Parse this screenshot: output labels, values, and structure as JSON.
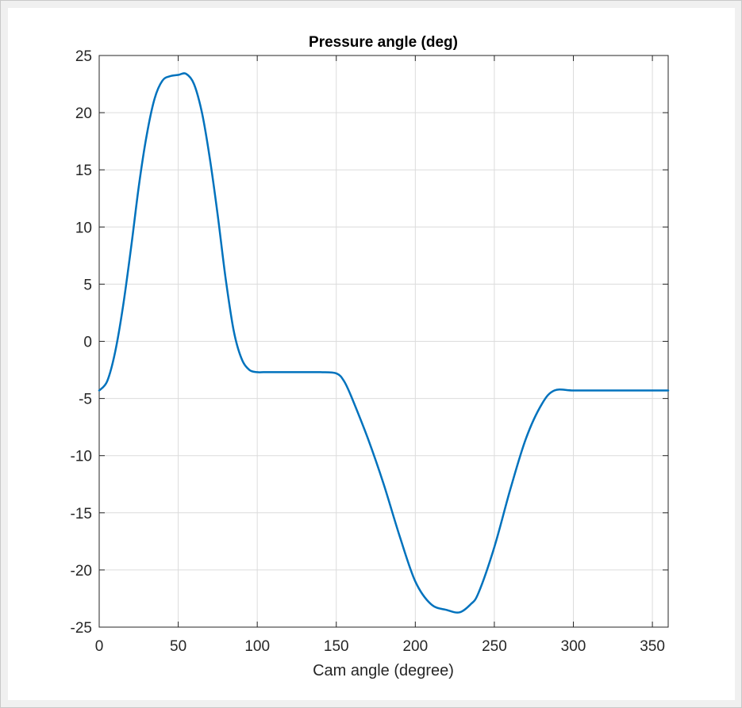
{
  "colors": {
    "background": "#f0f0f0",
    "axes_background": "#ffffff",
    "grid": "#dcdcdc",
    "axis": "#262626",
    "series": "#0072bd"
  },
  "chart_data": {
    "type": "line",
    "title": "Pressure angle (deg)",
    "xlabel": "Cam angle (degree)",
    "ylabel": "",
    "xlim": [
      0,
      360
    ],
    "ylim": [
      -25,
      25
    ],
    "xticks": [
      0,
      50,
      100,
      150,
      200,
      250,
      300,
      350
    ],
    "yticks": [
      25,
      20,
      15,
      10,
      5,
      0,
      -5,
      -10,
      -15,
      -20,
      -25
    ],
    "grid": true,
    "legend": "none",
    "series": [
      {
        "x": [
          0,
          5,
          10,
          15,
          20,
          25,
          30,
          35,
          40,
          45,
          50,
          55,
          60,
          65,
          70,
          75,
          80,
          85,
          90,
          95,
          100,
          104,
          110,
          120,
          130,
          140,
          150,
          155,
          160,
          170,
          180,
          190,
          200,
          210,
          220,
          228,
          235,
          240,
          250,
          260,
          270,
          280,
          288,
          300,
          320,
          340,
          360
        ],
        "y": [
          -4.3,
          -3.5,
          -1.0,
          3.0,
          8.0,
          13.5,
          18.0,
          21.2,
          22.8,
          23.2,
          23.3,
          23.4,
          22.5,
          20.0,
          16.0,
          11.0,
          5.5,
          1.0,
          -1.5,
          -2.5,
          -2.7,
          -2.7,
          -2.7,
          -2.7,
          -2.7,
          -2.7,
          -2.8,
          -3.5,
          -5.0,
          -8.5,
          -12.5,
          -17.0,
          -21.0,
          -23.0,
          -23.5,
          -23.7,
          -23.0,
          -22.0,
          -18.0,
          -13.0,
          -8.5,
          -5.5,
          -4.3,
          -4.3,
          -4.3,
          -4.3,
          -4.3
        ]
      }
    ]
  }
}
